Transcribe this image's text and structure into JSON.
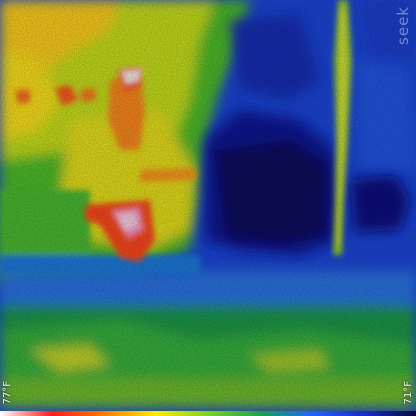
{
  "camera": {
    "brand_label": "seek"
  },
  "temperature_scale": {
    "max_label": "77°F",
    "min_label": "71°F",
    "palette_colors": [
      "#ffffff",
      "#ff1a1a",
      "#ff7a00",
      "#ffee00",
      "#7ed321",
      "#1aa34a",
      "#1d63ff",
      "#1a2cc8",
      "#0a0a40"
    ]
  }
}
